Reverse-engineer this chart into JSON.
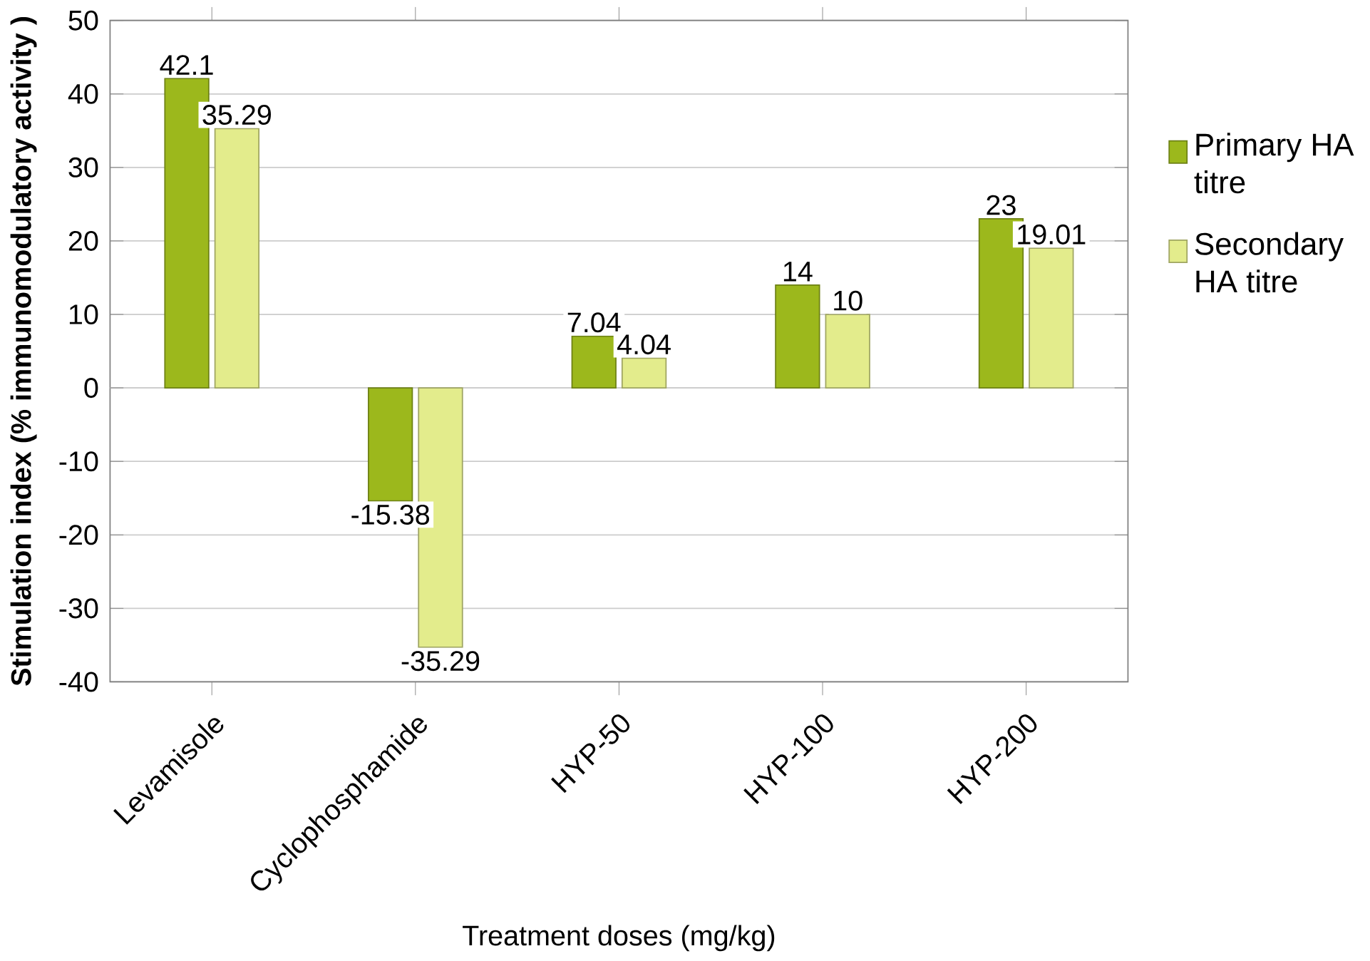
{
  "chart_data": {
    "type": "bar",
    "xlabel": "Treatment doses (mg/kg)",
    "ylabel": "Stimulation index (% immunomodulatory activity )",
    "categories": [
      "Levamisole",
      "Cyclophosphamide",
      "HYP-50",
      "HYP-100",
      "HYP-200"
    ],
    "series": [
      {
        "name": "Primary HA titre",
        "color": "#9cb81c",
        "values": [
          42.1,
          -15.38,
          7.04,
          14,
          23
        ]
      },
      {
        "name": "Secondary HA titre",
        "color": "#e3ec8c",
        "values": [
          35.29,
          -35.29,
          4.04,
          10,
          19.01
        ]
      }
    ],
    "ylim": [
      -40,
      50
    ],
    "yticks": [
      -40,
      -30,
      -20,
      -10,
      0,
      10,
      20,
      30,
      40,
      50
    ],
    "grid": "y",
    "legend": "right",
    "data_labels": true
  }
}
